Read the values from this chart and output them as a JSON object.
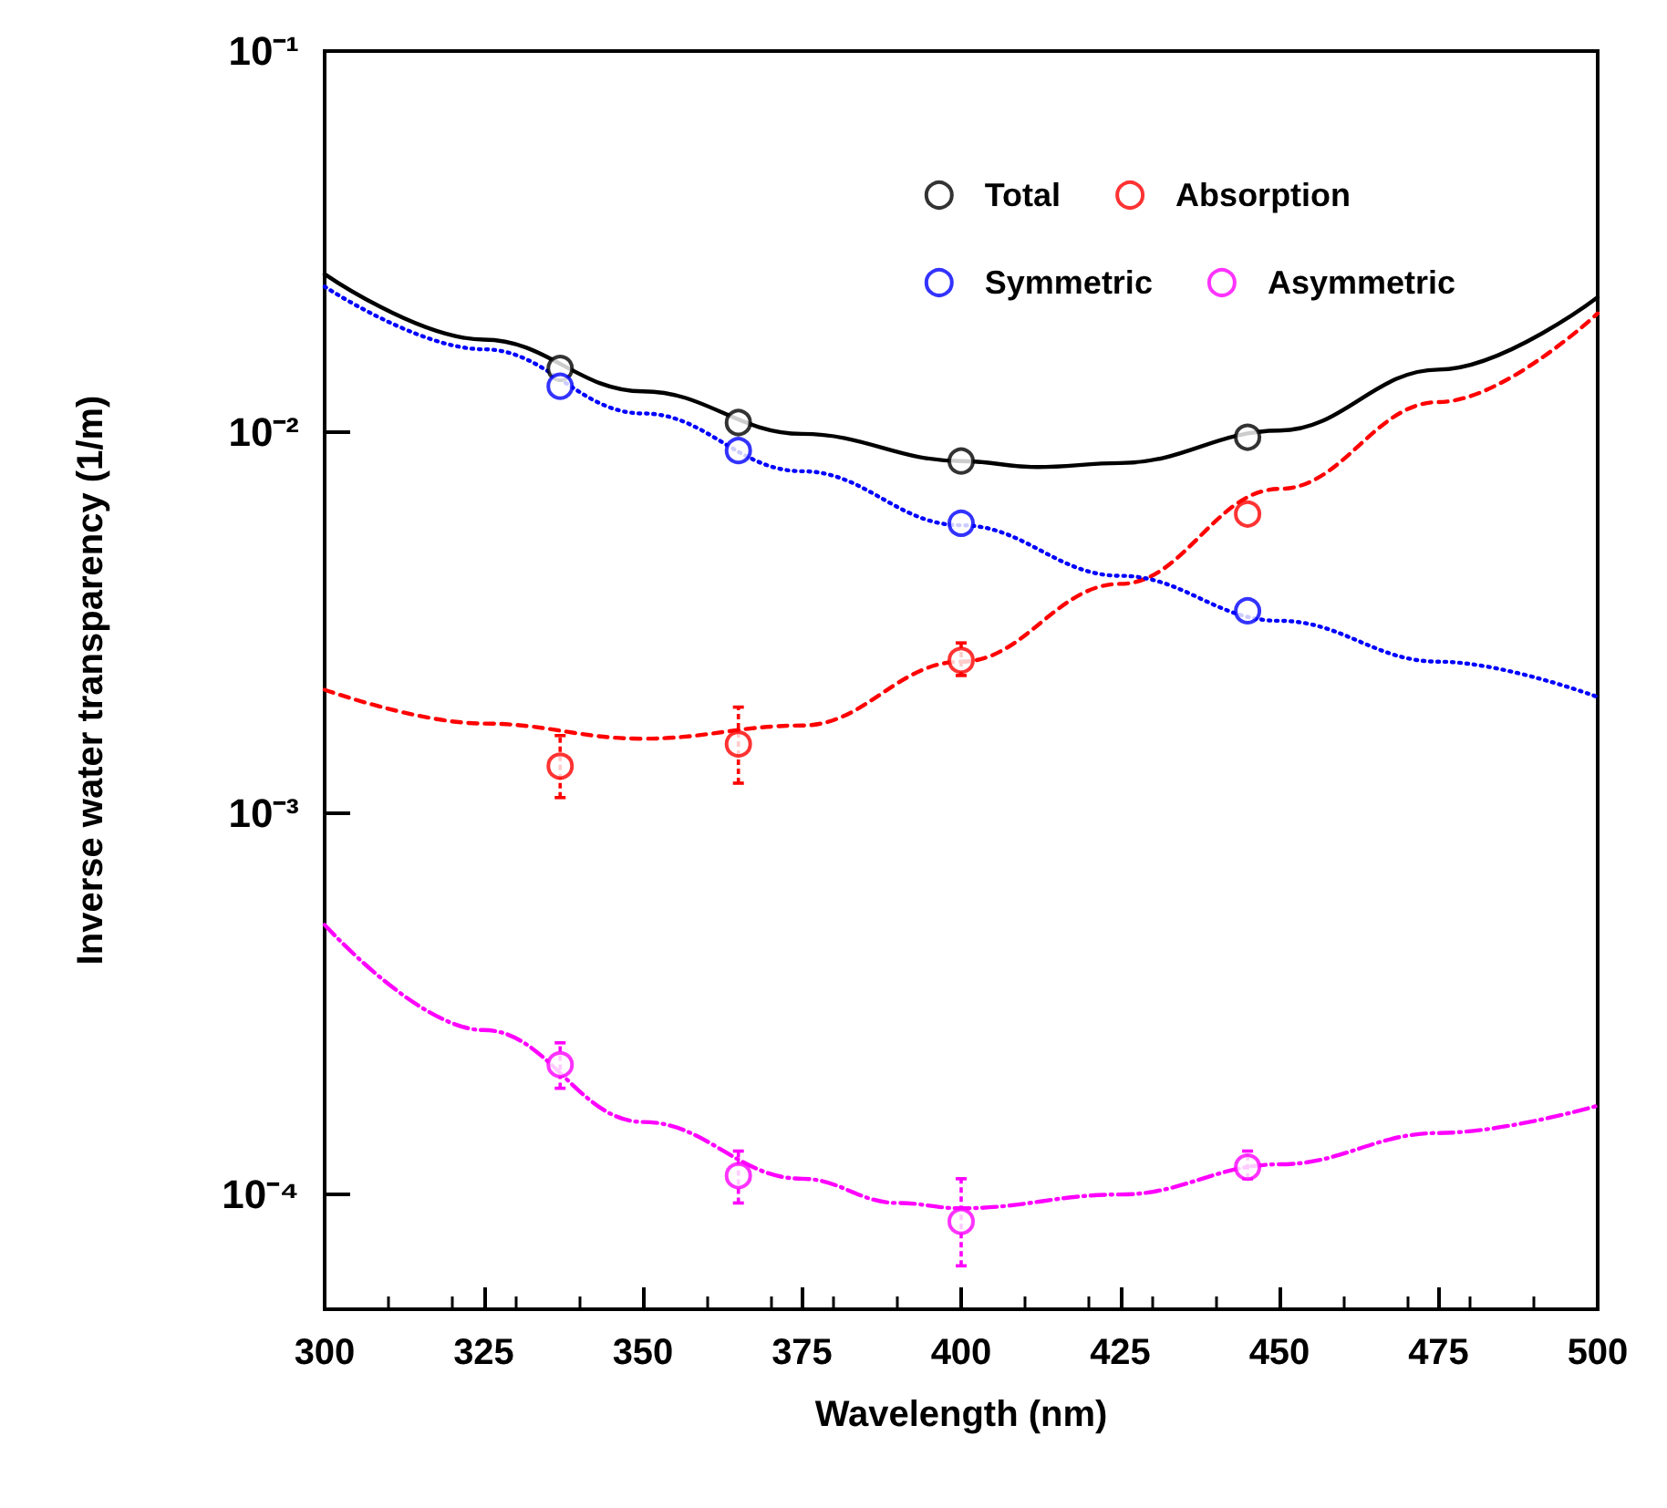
{
  "chart_data": {
    "type": "scatter",
    "xlabel": "Wavelength (nm)",
    "ylabel": "Inverse water transparency (1/m)",
    "xlim": [
      300,
      500
    ],
    "xticks": [
      300,
      325,
      350,
      375,
      400,
      425,
      450,
      475,
      500
    ],
    "ylim": [
      5e-05,
      0.1
    ],
    "yticks": [
      {
        "value": 0.0001,
        "label": "10⁻⁴"
      },
      {
        "value": 0.001,
        "label": "10⁻³"
      },
      {
        "value": 0.01,
        "label": "10⁻²"
      },
      {
        "value": 0.1,
        "label": "10⁻¹"
      }
    ],
    "log": "y",
    "grid": false,
    "legend": "top right",
    "marker": "circle",
    "series": [
      {
        "name": "Total",
        "color": "#000000",
        "x": [
          337,
          365,
          400,
          445
        ],
        "values": [
          0.0147,
          0.0106,
          0.0084,
          0.0097
        ]
      },
      {
        "name": "Absorption",
        "color": "#ff0000",
        "x": [
          337,
          365,
          400,
          445
        ],
        "values": [
          0.00133,
          0.00152,
          0.00252,
          0.0061
        ],
        "errors": [
          [
            0.0011,
            0.0016
          ],
          [
            0.0012,
            0.0019
          ],
          [
            0.0023,
            0.0028
          ],
          null
        ]
      },
      {
        "name": "Symmetric",
        "color": "#0000ff",
        "x": [
          337,
          365,
          400,
          445
        ],
        "values": [
          0.0132,
          0.00895,
          0.00577,
          0.0034
        ]
      },
      {
        "name": "Asymmetric",
        "color": "#ff00ff",
        "x": [
          337,
          365,
          400,
          445
        ],
        "values": [
          0.000219,
          0.000112,
          8.5e-05,
          0.000118
        ],
        "errors": [
          [
            0.00019,
            0.00025
          ],
          [
            9.5e-05,
            0.00013
          ],
          [
            6.5e-05,
            0.00011
          ],
          [
            0.00011,
            0.00013
          ]
        ]
      },
      {
        "type": "line",
        "marker": "none",
        "color": "#000000",
        "line_style": "solid",
        "x": [
          300,
          325,
          350,
          375,
          400,
          412,
          425,
          450,
          475,
          500
        ],
        "values": [
          0.026,
          0.0175,
          0.0128,
          0.0099,
          0.0084,
          0.0081,
          0.0083,
          0.0101,
          0.0146,
          0.0226
        ]
      },
      {
        "type": "line",
        "marker": "none",
        "color": "#ff0000",
        "line_style": "dashed",
        "x": [
          300,
          325,
          350,
          375,
          400,
          425,
          450,
          475,
          500
        ],
        "values": [
          0.00211,
          0.00172,
          0.00157,
          0.0017,
          0.0025,
          0.004,
          0.0071,
          0.012,
          0.0205
        ]
      },
      {
        "type": "line",
        "marker": "none",
        "color": "#0000ff",
        "line_style": "dotted",
        "x": [
          300,
          325,
          350,
          375,
          400,
          425,
          450,
          475,
          500
        ],
        "values": [
          0.0241,
          0.0165,
          0.0112,
          0.0079,
          0.0057,
          0.0042,
          0.0032,
          0.0025,
          0.00202
        ]
      },
      {
        "type": "line",
        "marker": "none",
        "color": "#ff00ff",
        "line_style": "dashdot",
        "x": [
          300,
          325,
          350,
          375,
          390,
          400,
          425,
          450,
          475,
          500
        ],
        "values": [
          0.00051,
          0.00027,
          0.000155,
          0.00011,
          9.5e-05,
          9.2e-05,
          0.0001,
          0.00012,
          0.000145,
          0.000171
        ]
      }
    ]
  }
}
